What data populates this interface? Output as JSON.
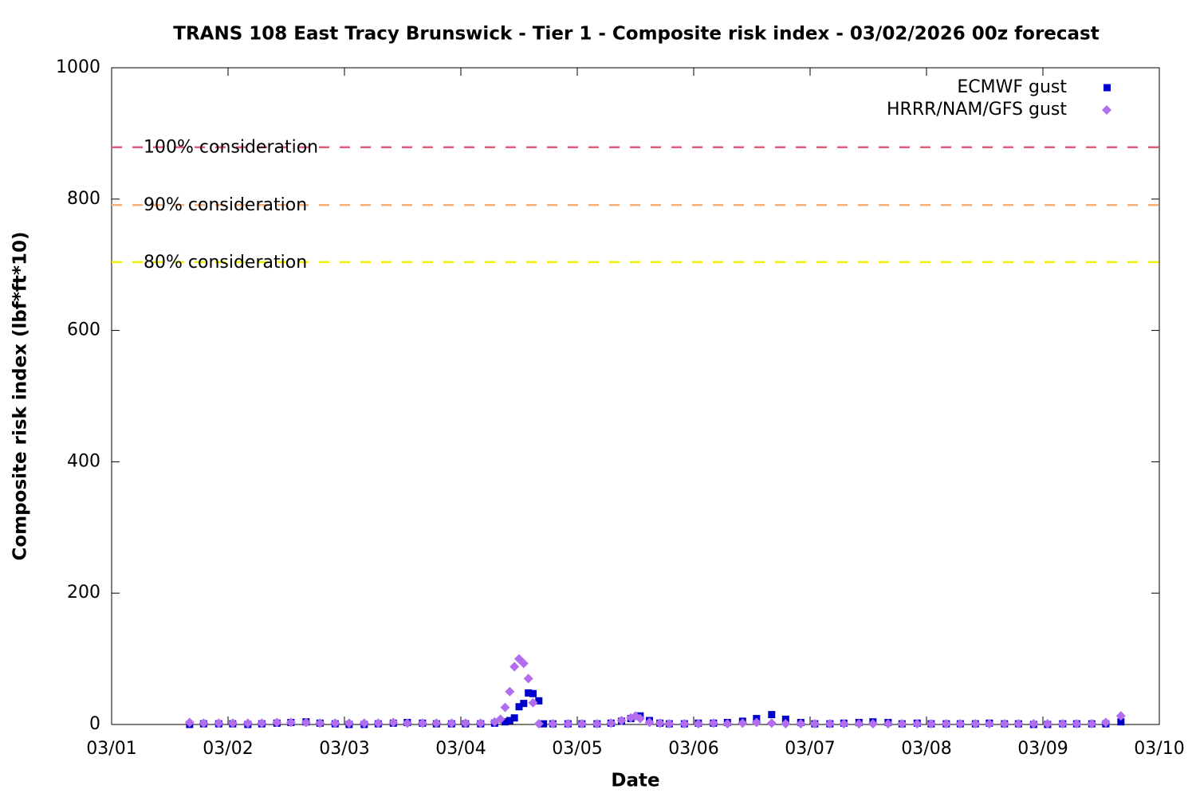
{
  "chart_data": {
    "type": "scatter",
    "title": "TRANS 108 East Tracy Brunswick - Tier 1 - Composite risk index - 03/02/2026 00z forecast",
    "x_label": "Date",
    "y_label": "Composite risk index (lbf*ft*10)",
    "xlim": [
      0,
      9
    ],
    "xticks": [
      {
        "value": 0,
        "label": "03/01"
      },
      {
        "value": 1,
        "label": "03/02"
      },
      {
        "value": 2,
        "label": "03/03"
      },
      {
        "value": 3,
        "label": "03/04"
      },
      {
        "value": 4,
        "label": "03/05"
      },
      {
        "value": 5,
        "label": "03/06"
      },
      {
        "value": 6,
        "label": "03/07"
      },
      {
        "value": 7,
        "label": "03/08"
      },
      {
        "value": 8,
        "label": "03/09"
      },
      {
        "value": 9,
        "label": "03/10"
      }
    ],
    "ylim": [
      0,
      1000
    ],
    "yticks": [
      0,
      200,
      400,
      600,
      800,
      1000
    ],
    "grid": false,
    "legend": "top-right",
    "reference_lines": [
      {
        "label": "100% consideration",
        "value": 879,
        "color": "#dc5f7e"
      },
      {
        "label": "90% consideration",
        "value": 791,
        "color": "#f5b07c"
      },
      {
        "label": "80% consideration",
        "value": 704,
        "color": "#eeee00"
      }
    ],
    "series": [
      {
        "name": "ECMWF gust",
        "color": "#0000cc",
        "marker": "square",
        "x": [
          0.67,
          0.79,
          0.92,
          1.04,
          1.17,
          1.29,
          1.42,
          1.54,
          1.67,
          1.79,
          1.92,
          2.04,
          2.17,
          2.29,
          2.42,
          2.54,
          2.67,
          2.79,
          2.92,
          3.04,
          3.17,
          3.29,
          3.38,
          3.42,
          3.46,
          3.5,
          3.54,
          3.58,
          3.62,
          3.67,
          3.71,
          3.79,
          3.92,
          4.04,
          4.17,
          4.29,
          4.38,
          4.46,
          4.54,
          4.62,
          4.71,
          4.79,
          4.92,
          5.04,
          5.17,
          5.29,
          5.42,
          5.54,
          5.67,
          5.79,
          5.92,
          6.04,
          6.17,
          6.29,
          6.42,
          6.54,
          6.67,
          6.79,
          6.92,
          7.04,
          7.17,
          7.29,
          7.42,
          7.54,
          7.67,
          7.79,
          7.92,
          8.04,
          8.17,
          8.29,
          8.42,
          8.54,
          8.67
        ],
        "values": [
          0,
          1,
          1,
          1,
          0,
          1,
          2,
          3,
          4,
          2,
          1,
          0,
          0,
          1,
          2,
          3,
          2,
          1,
          1,
          1,
          1,
          2,
          4,
          6,
          10,
          27,
          32,
          48,
          47,
          36,
          1,
          1,
          1,
          1,
          1,
          2,
          5,
          9,
          13,
          6,
          2,
          1,
          1,
          2,
          2,
          3,
          5,
          9,
          15,
          8,
          3,
          1,
          1,
          2,
          3,
          4,
          3,
          1,
          2,
          1,
          1,
          1,
          1,
          2,
          1,
          1,
          0,
          0,
          1,
          1,
          1,
          1,
          4
        ]
      },
      {
        "name": "HRRR/NAM/GFS gust",
        "color": "#b36ef0",
        "marker": "diamond",
        "x": [
          0.67,
          0.79,
          0.92,
          1.04,
          1.17,
          1.29,
          1.42,
          1.54,
          1.67,
          1.79,
          1.92,
          2.04,
          2.17,
          2.29,
          2.42,
          2.54,
          2.67,
          2.79,
          2.92,
          3.04,
          3.17,
          3.29,
          3.34,
          3.38,
          3.42,
          3.46,
          3.5,
          3.54,
          3.58,
          3.62,
          3.67,
          3.79,
          3.92,
          4.04,
          4.17,
          4.29,
          4.38,
          4.46,
          4.5,
          4.54,
          4.62,
          4.71,
          4.79,
          4.92,
          5.04,
          5.17,
          5.29,
          5.42,
          5.54,
          5.67,
          5.79,
          5.92,
          6.04,
          6.17,
          6.29,
          6.42,
          6.54,
          6.67,
          6.79,
          6.92,
          7.04,
          7.17,
          7.29,
          7.42,
          7.54,
          7.67,
          7.79,
          7.92,
          8.04,
          8.17,
          8.29,
          8.42,
          8.54,
          8.67
        ],
        "values": [
          3,
          2,
          2,
          2,
          2,
          2,
          3,
          3,
          3,
          2,
          2,
          2,
          2,
          2,
          3,
          2,
          2,
          2,
          2,
          2,
          2,
          4,
          8,
          26,
          50,
          88,
          100,
          93,
          70,
          33,
          1,
          1,
          1,
          1,
          1,
          2,
          6,
          10,
          13,
          9,
          3,
          2,
          1,
          1,
          1,
          2,
          1,
          2,
          3,
          2,
          1,
          1,
          1,
          1,
          1,
          1,
          1,
          1,
          1,
          1,
          1,
          1,
          1,
          1,
          1,
          1,
          1,
          1,
          1,
          1,
          1,
          1,
          3,
          13
        ]
      }
    ]
  }
}
